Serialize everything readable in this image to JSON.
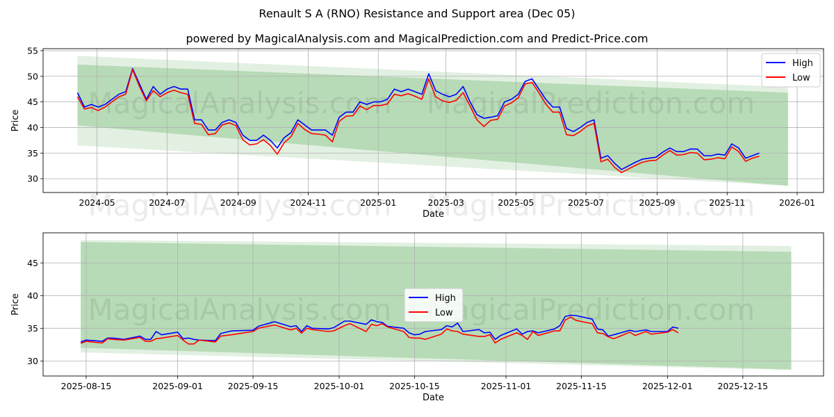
{
  "title": "Renault S A (RNO) Resistance and Support area (Dec 05)",
  "subtitle": "powered by MagicalAnalysis.com and MagicalPrediction.com and Predict-Price.com",
  "watermarks": [
    "MagicalAnalysis.com",
    "MagicalPrediction.com"
  ],
  "colors": {
    "high": "#0000ff",
    "low": "#ff0000",
    "band_inner": "#b7dbb6",
    "band_outer": "#e2f0e2",
    "grid": "#b0b0b0"
  },
  "chart_data": [
    {
      "type": "line",
      "xlabel": "Date",
      "ylabel": "Price",
      "xlim": [
        "2024-03-15",
        "2026-01-24"
      ],
      "ylim": [
        27.3,
        55.4
      ],
      "yticks": [
        30,
        35,
        40,
        45,
        50,
        55
      ],
      "xticks": [
        "2024-05-01",
        "2024-07-01",
        "2024-09-01",
        "2024-11-01",
        "2025-01-01",
        "2025-03-01",
        "2025-05-01",
        "2025-07-01",
        "2025-09-01",
        "2025-11-01",
        "2026-01-01"
      ],
      "xtick_labels": [
        "2024-05",
        "2024-07",
        "2024-09",
        "2024-11",
        "2025-01",
        "2025-03",
        "2025-05",
        "2025-07",
        "2025-09",
        "2025-11",
        "2026-01"
      ],
      "grid": true,
      "legend": {
        "position": "top-right",
        "entries": [
          "High",
          "Low"
        ]
      },
      "bands": {
        "x": [
          "2024-04-14",
          "2025-12-24"
        ],
        "outer_top": [
          54.0,
          47.9
        ],
        "inner_top": [
          52.3,
          46.8
        ],
        "inner_bottom": [
          40.4,
          28.6
        ],
        "outer_bottom": [
          36.5,
          28.6
        ]
      },
      "x_start": "2024-04-14",
      "x_step_days": 6,
      "series": [
        {
          "name": "High",
          "values": [
            46.8,
            44,
            44.5,
            44,
            44.5,
            45.5,
            46.5,
            47,
            51.5,
            48.5,
            45.5,
            48,
            46.5,
            47.5,
            48,
            47.5,
            47.5,
            41.5,
            41.5,
            39.5,
            39.5,
            41,
            41.5,
            41,
            38.5,
            37.5,
            37.5,
            38.5,
            37.5,
            36,
            38,
            39,
            41.5,
            40.5,
            39.5,
            39.5,
            39.5,
            38.5,
            42,
            43,
            43,
            45,
            44.5,
            45,
            45,
            45.5,
            47.5,
            47,
            47.5,
            47,
            46.5,
            50.5,
            47.2,
            46.5,
            46,
            46.5,
            48,
            45,
            42.5,
            41.8,
            42,
            42.3,
            45,
            45.5,
            46.5,
            49,
            49.5,
            47.5,
            45.5,
            44,
            44,
            39.8,
            39.2,
            40,
            41,
            41.5,
            34,
            34.5,
            33,
            31.8,
            32.5,
            33.2,
            33.8,
            34,
            34.2,
            35.2,
            36,
            35.3,
            35.3,
            35.8,
            35.8,
            34.5,
            34.5,
            34.8,
            34.6,
            36.8,
            36,
            34,
            34.5,
            35
          ]
        },
        {
          "name": "Low",
          "values": [
            46.0,
            43.6,
            43.9,
            43.3,
            44.0,
            45.0,
            46.0,
            46.5,
            51.3,
            48.0,
            45.2,
            47.2,
            46.0,
            46.8,
            47.3,
            46.8,
            46.5,
            40.8,
            40.6,
            38.6,
            38.8,
            40.5,
            40.9,
            40.4,
            37.6,
            36.6,
            36.8,
            37.6,
            36.5,
            34.8,
            37.0,
            38.2,
            40.8,
            39.6,
            38.8,
            38.7,
            38.5,
            37.2,
            41.2,
            42.2,
            42.3,
            44.2,
            43.5,
            44.3,
            44.3,
            44.6,
            46.5,
            46.2,
            46.6,
            46.1,
            45.5,
            49.5,
            46.0,
            45.2,
            44.9,
            45.3,
            46.8,
            44.2,
            41.5,
            40.2,
            41.4,
            41.6,
            44.2,
            44.8,
            45.8,
            48.5,
            48.8,
            46.8,
            44.6,
            43.0,
            43.0,
            38.6,
            38.4,
            39.2,
            40.3,
            40.8,
            33.3,
            33.8,
            32.2,
            31.2,
            31.9,
            32.6,
            33.2,
            33.5,
            33.6,
            34.6,
            35.5,
            34.6,
            34.7,
            35.1,
            35.0,
            33.7,
            33.8,
            34.1,
            33.9,
            36.2,
            35.3,
            33.4,
            34.0,
            34.4
          ]
        }
      ]
    },
    {
      "type": "line",
      "xlabel": "Date",
      "ylabel": "Price",
      "xlim": [
        "2025-08-07",
        "2025-12-30"
      ],
      "ylim": [
        27.7,
        49.6
      ],
      "yticks": [
        30,
        35,
        40,
        45
      ],
      "xticks": [
        "2025-08-15",
        "2025-09-01",
        "2025-09-15",
        "2025-10-01",
        "2025-10-15",
        "2025-11-01",
        "2025-11-15",
        "2025-12-01",
        "2025-12-15"
      ],
      "xtick_labels": [
        "2025-08-15",
        "2025-09-01",
        "2025-09-15",
        "2025-10-01",
        "2025-10-15",
        "2025-11-01",
        "2025-11-15",
        "2025-12-01",
        "2025-12-15"
      ],
      "grid": true,
      "legend": {
        "position": "center",
        "entries": [
          "High",
          "Low"
        ]
      },
      "bands": {
        "x": [
          "2025-08-14",
          "2025-12-24"
        ],
        "outer_top": [
          48.5,
          47.6
        ],
        "inner_top": [
          48.2,
          46.7
        ],
        "inner_bottom": [
          32.0,
          28.7
        ],
        "outer_bottom": [
          31.3,
          28.6
        ]
      },
      "x": [
        "2025-08-14",
        "2025-08-15",
        "2025-08-18",
        "2025-08-19",
        "2025-08-20",
        "2025-08-22",
        "2025-08-25",
        "2025-08-26",
        "2025-08-27",
        "2025-08-28",
        "2025-08-29",
        "2025-09-01",
        "2025-09-02",
        "2025-09-03",
        "2025-09-04",
        "2025-09-05",
        "2025-09-08",
        "2025-09-09",
        "2025-09-11",
        "2025-09-15",
        "2025-09-16",
        "2025-09-19",
        "2025-09-22",
        "2025-09-23",
        "2025-09-24",
        "2025-09-25",
        "2025-09-26",
        "2025-09-29",
        "2025-09-30",
        "2025-10-02",
        "2025-10-03",
        "2025-10-06",
        "2025-10-07",
        "2025-10-08",
        "2025-10-09",
        "2025-10-10",
        "2025-10-13",
        "2025-10-14",
        "2025-10-15",
        "2025-10-16",
        "2025-10-17",
        "2025-10-20",
        "2025-10-21",
        "2025-10-22",
        "2025-10-23",
        "2025-10-24",
        "2025-10-27",
        "2025-10-28",
        "2025-10-29",
        "2025-10-30",
        "2025-10-31",
        "2025-11-03",
        "2025-11-04",
        "2025-11-05",
        "2025-11-06",
        "2025-11-07",
        "2025-11-10",
        "2025-11-11",
        "2025-11-12",
        "2025-11-13",
        "2025-11-14",
        "2025-11-17",
        "2025-11-18",
        "2025-11-19",
        "2025-11-20",
        "2025-11-21",
        "2025-11-24",
        "2025-11-25",
        "2025-11-27",
        "2025-11-28",
        "2025-12-01",
        "2025-12-02",
        "2025-12-03"
      ],
      "series": [
        {
          "name": "High",
          "values": [
            32.9,
            33.2,
            33.0,
            33.5,
            33.5,
            33.3,
            33.8,
            33.3,
            33.3,
            34.5,
            34.0,
            34.4,
            33.4,
            33.5,
            33.3,
            33.2,
            33.1,
            34.2,
            34.6,
            34.7,
            35.3,
            36.0,
            35.25,
            35.4,
            34.5,
            35.4,
            35.0,
            34.9,
            35.1,
            36.1,
            36.1,
            35.6,
            36.3,
            36.0,
            35.9,
            35.3,
            35.0,
            34.3,
            34.0,
            34.1,
            34.5,
            34.8,
            35.4,
            35.2,
            35.8,
            34.5,
            34.8,
            34.3,
            34.4,
            33.3,
            33.9,
            34.9,
            34.1,
            34.5,
            34.6,
            34.3,
            34.9,
            35.4,
            36.8,
            37.0,
            36.95,
            36.4,
            34.9,
            34.75,
            33.8,
            34.0,
            34.7,
            34.5,
            34.75,
            34.5,
            34.5,
            35.2,
            35.0
          ]
        },
        {
          "name": "Low",
          "values": [
            32.7,
            33.0,
            32.75,
            33.4,
            33.3,
            33.2,
            33.6,
            33.0,
            33.0,
            33.4,
            33.5,
            33.9,
            33.2,
            32.6,
            32.6,
            33.2,
            32.9,
            33.8,
            34.0,
            34.5,
            35.0,
            35.5,
            34.75,
            35.0,
            34.25,
            35.0,
            34.8,
            34.5,
            34.6,
            35.4,
            35.7,
            34.5,
            35.6,
            35.4,
            35.7,
            35.2,
            34.5,
            33.6,
            33.5,
            33.5,
            33.3,
            34.1,
            34.9,
            34.6,
            34.5,
            34.1,
            33.75,
            33.75,
            34.0,
            32.75,
            33.3,
            34.3,
            33.9,
            33.3,
            34.5,
            33.9,
            34.6,
            34.6,
            36.25,
            36.7,
            36.2,
            35.7,
            34.3,
            34.2,
            33.7,
            33.4,
            34.4,
            33.9,
            34.5,
            34.1,
            34.4,
            34.8,
            34.3
          ]
        }
      ]
    }
  ]
}
